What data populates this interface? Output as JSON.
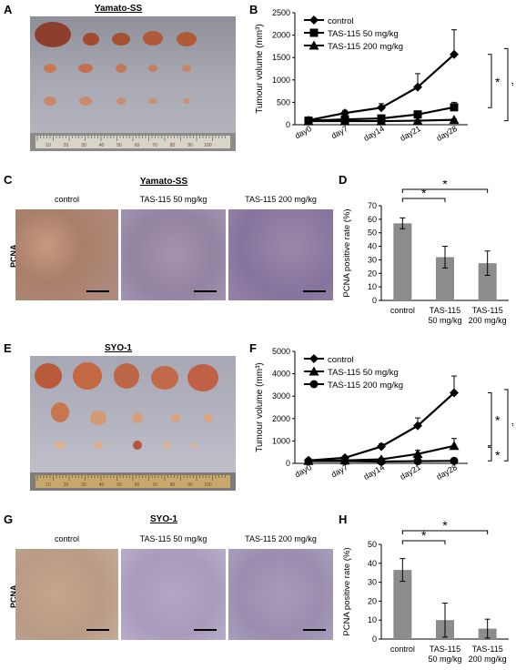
{
  "panel_letters": {
    "A": "A",
    "B": "B",
    "C": "C",
    "D": "D",
    "E": "E",
    "F": "F",
    "G": "G",
    "H": "H"
  },
  "panel_A": {
    "title": "Yamato-SS"
  },
  "panel_C": {
    "title": "Yamato-SS",
    "row_label": "PCNA",
    "columns": [
      "control",
      "TAS-115 50 mg/kg",
      "TAS-115 200 mg/kg"
    ]
  },
  "panel_E": {
    "title": "SYO-1"
  },
  "panel_G": {
    "title": "SYO-1",
    "row_label": "PCNA",
    "columns": [
      "control",
      "TAS-115 50 mg/kg",
      "TAS-115 200 mg/kg"
    ]
  },
  "ruler_numbers": [
    "10",
    "20",
    "30",
    "40",
    "50",
    "60",
    "70",
    "80",
    "90",
    "100"
  ],
  "colors": {
    "bar": "#8c8c8c",
    "line": "#000000",
    "tissue_brown": "#b8825a",
    "tissue_purple": "#8a73a8"
  },
  "chart_data": [
    {
      "id": "B",
      "type": "line",
      "x": [
        "day0",
        "day7",
        "day14",
        "day21",
        "day28"
      ],
      "ylabel": "Tumour volume (mm³)",
      "ylim": [
        0,
        2500
      ],
      "yticks": [
        "0",
        "500",
        "1000",
        "1500",
        "2000",
        "2500"
      ],
      "series": [
        {
          "name": "control",
          "marker": "diamond",
          "values": [
            100,
            260,
            380,
            840,
            1570
          ],
          "err": [
            0,
            60,
            90,
            300,
            550
          ]
        },
        {
          "name": "TAS-115 50 mg/kg",
          "marker": "square",
          "values": [
            90,
            120,
            140,
            230,
            390
          ],
          "err": [
            0,
            20,
            30,
            60,
            110
          ]
        },
        {
          "name": "TAS-115 200 mg/kg",
          "marker": "triangle",
          "values": [
            80,
            80,
            80,
            90,
            110
          ],
          "err": [
            0,
            10,
            10,
            15,
            20
          ]
        }
      ],
      "significance": [
        "*",
        "*"
      ]
    },
    {
      "id": "D",
      "type": "bar",
      "categories": [
        "control",
        "TAS-115 50 mg/kg",
        "TAS-115 200 mg/kg"
      ],
      "category_lines": [
        [
          "control"
        ],
        [
          "TAS-115",
          "50 mg/kg"
        ],
        [
          "TAS-115",
          "200 mg/kg"
        ]
      ],
      "values": [
        57,
        32,
        27.5
      ],
      "err": [
        4,
        8,
        9
      ],
      "ylabel": "PCNA positive rate (%)",
      "ylim": [
        0,
        70
      ],
      "yticks": [
        "0",
        "10",
        "20",
        "30",
        "40",
        "50",
        "60",
        "70"
      ],
      "significance": [
        "*",
        "*"
      ]
    },
    {
      "id": "F",
      "type": "line",
      "x": [
        "day0",
        "day7",
        "day14",
        "day21",
        "day28"
      ],
      "ylabel": "Tumour volume (mm³)",
      "ylim": [
        0,
        5000
      ],
      "yticks": [
        "0",
        "1000",
        "2000",
        "3000",
        "4000",
        "5000"
      ],
      "series": [
        {
          "name": "control",
          "marker": "diamond",
          "values": [
            130,
            250,
            750,
            1680,
            3150
          ],
          "err": [
            0,
            70,
            120,
            350,
            750
          ]
        },
        {
          "name": "TAS-115 50 mg/kg",
          "marker": "triangle",
          "values": [
            110,
            130,
            180,
            420,
            780
          ],
          "err": [
            0,
            30,
            60,
            160,
            330
          ]
        },
        {
          "name": "TAS-115 200 mg/kg",
          "marker": "circle",
          "values": [
            100,
            100,
            80,
            100,
            110
          ],
          "err": [
            0,
            10,
            10,
            15,
            20
          ]
        }
      ],
      "significance": [
        "*",
        "*",
        "*"
      ]
    },
    {
      "id": "H",
      "type": "bar",
      "categories": [
        "control",
        "TAS-115 50 mg/kg",
        "TAS-115 200 mg/kg"
      ],
      "category_lines": [
        [
          "control"
        ],
        [
          "TAS-115",
          "50 mg/kg"
        ],
        [
          "TAS-115",
          "200 mg/kg"
        ]
      ],
      "values": [
        36.5,
        10,
        5.5
      ],
      "err": [
        6,
        9,
        5
      ],
      "ylabel": "PCNA positive rate (%)",
      "ylim": [
        0,
        50
      ],
      "yticks": [
        "0",
        "10",
        "20",
        "30",
        "40",
        "50"
      ],
      "significance": [
        "*",
        "*"
      ]
    }
  ]
}
